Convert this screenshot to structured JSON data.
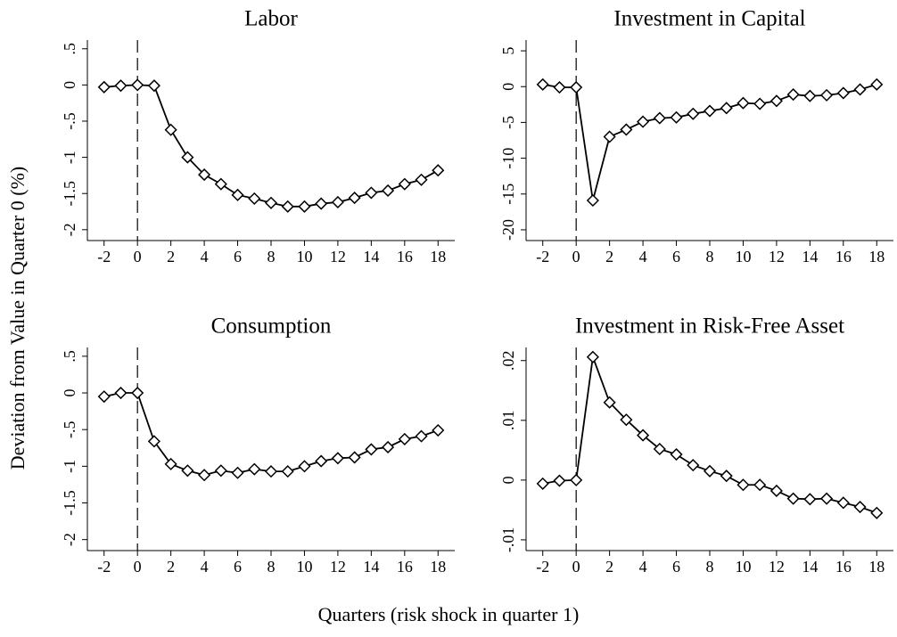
{
  "ylabel": "Deviation from Value in Quarter 0 (%)",
  "xlabel": "Quarters (risk shock in quarter 1)",
  "chart_data": [
    {
      "type": "line",
      "title": "Labor",
      "x": [
        -2,
        -1,
        0,
        1,
        2,
        3,
        4,
        5,
        6,
        7,
        8,
        9,
        10,
        11,
        12,
        13,
        14,
        15,
        16,
        17,
        18
      ],
      "values": [
        -0.03,
        -0.01,
        0,
        -0.01,
        -0.62,
        -1.0,
        -1.24,
        -1.37,
        -1.52,
        -1.57,
        -1.63,
        -1.68,
        -1.68,
        -1.64,
        -1.62,
        -1.56,
        -1.49,
        -1.46,
        -1.37,
        -1.31,
        -1.18
      ],
      "color": "#000000",
      "vline": 0,
      "xlim": [
        -3,
        19
      ],
      "xticks": [
        -2,
        0,
        2,
        4,
        6,
        8,
        10,
        12,
        14,
        16,
        18
      ],
      "ylim": [
        -2.15,
        0.62
      ],
      "yticks": [
        {
          "value": 0.5,
          "label": ".5"
        },
        0,
        {
          "value": -0.5,
          "label": "-.5"
        },
        -1,
        -1.5,
        -2
      ]
    },
    {
      "type": "line",
      "title": "Investment in Capital",
      "x": [
        -2,
        -1,
        0,
        1,
        2,
        3,
        4,
        5,
        6,
        7,
        8,
        9,
        10,
        11,
        12,
        13,
        14,
        15,
        16,
        17,
        18
      ],
      "values": [
        0.3,
        -0.1,
        -0.1,
        -15.9,
        -7.0,
        -6.0,
        -4.9,
        -4.4,
        -4.3,
        -3.8,
        -3.4,
        -3.0,
        -2.3,
        -2.4,
        -2.0,
        -1.1,
        -1.3,
        -1.2,
        -0.9,
        -0.4,
        0.3
      ],
      "color": "#000000",
      "vline": 0,
      "xlim": [
        -3,
        19
      ],
      "xticks": [
        -2,
        0,
        2,
        4,
        6,
        8,
        10,
        12,
        14,
        16,
        18
      ],
      "ylim": [
        -21.5,
        6.5
      ],
      "yticks": [
        5,
        0,
        -5,
        -10,
        -15,
        -20
      ]
    },
    {
      "type": "line",
      "title": "Consumption",
      "x": [
        -2,
        -1,
        0,
        1,
        2,
        3,
        4,
        5,
        6,
        7,
        8,
        9,
        10,
        11,
        12,
        13,
        14,
        15,
        16,
        17,
        18
      ],
      "values": [
        -0.05,
        0,
        0,
        -0.66,
        -0.97,
        -1.06,
        -1.12,
        -1.06,
        -1.09,
        -1.04,
        -1.07,
        -1.07,
        -1.0,
        -0.93,
        -0.89,
        -0.88,
        -0.77,
        -0.74,
        -0.63,
        -0.59,
        -0.51
      ],
      "color": "#000000",
      "vline": 0,
      "xlim": [
        -3,
        19
      ],
      "xticks": [
        -2,
        0,
        2,
        4,
        6,
        8,
        10,
        12,
        14,
        16,
        18
      ],
      "ylim": [
        -2.15,
        0.62
      ],
      "yticks": [
        {
          "value": 0.5,
          "label": ".5"
        },
        0,
        {
          "value": -0.5,
          "label": "-.5"
        },
        -1,
        -1.5,
        -2
      ]
    },
    {
      "type": "line",
      "title": "Investment in Risk-Free Asset",
      "x": [
        -2,
        -1,
        0,
        1,
        2,
        3,
        4,
        5,
        6,
        7,
        8,
        9,
        10,
        11,
        12,
        13,
        14,
        15,
        16,
        17,
        18
      ],
      "values": [
        -0.0006,
        -0.0001,
        0,
        0.0206,
        0.013,
        0.0101,
        0.0075,
        0.0052,
        0.0043,
        0.0025,
        0.0015,
        0.0007,
        -0.0008,
        -0.0008,
        -0.0018,
        -0.0031,
        -0.0032,
        -0.0031,
        -0.0038,
        -0.0045,
        -0.0055
      ],
      "color": "#000000",
      "vline": 0,
      "xlim": [
        -3,
        19
      ],
      "xticks": [
        -2,
        0,
        2,
        4,
        6,
        8,
        10,
        12,
        14,
        16,
        18
      ],
      "ylim": [
        -0.0118,
        0.0222
      ],
      "yticks": [
        {
          "value": 0.02,
          "label": ".02"
        },
        {
          "value": 0.01,
          "label": ".01"
        },
        0,
        {
          "value": -0.01,
          "label": "-.01"
        }
      ]
    }
  ]
}
